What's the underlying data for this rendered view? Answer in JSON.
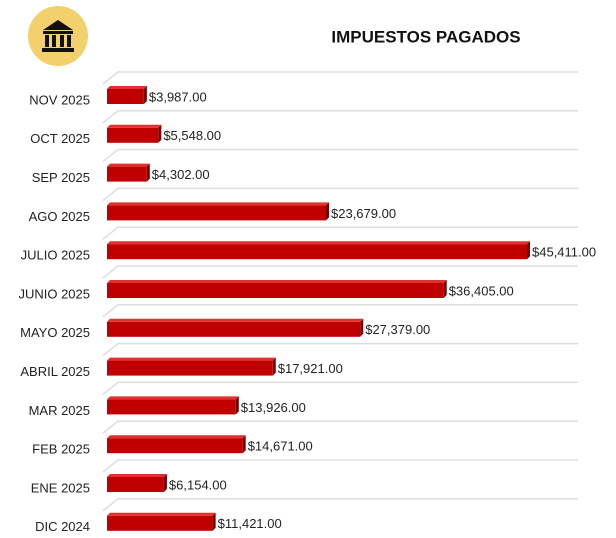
{
  "chart_data": {
    "type": "bar",
    "title": "IMPUESTOS PAGADOS",
    "categories": [
      "NOV 2025",
      "OCT 2025",
      "SEP 2025",
      "AGO 2025",
      "JULIO 2025",
      "JUNIO 2025",
      "MAYO 2025",
      "ABRIL 2025",
      "MAR 2025",
      "FEB 2025",
      "ENE 2025",
      "DIC 2024"
    ],
    "values": [
      3987,
      5548,
      4302,
      23679,
      45411,
      36405,
      27379,
      17921,
      13926,
      14671,
      6154,
      11421
    ],
    "value_labels": [
      "$3,987.00",
      "$5,548.00",
      "$4,302.00",
      "$23,679.00",
      "$45,411.00",
      "$36,405.00",
      "$27,379.00",
      "$17,921.00",
      "$13,926.00",
      "$14,671.00",
      "$6,154.00",
      "$11,421.00"
    ],
    "color": "#c00000",
    "grid": true
  }
}
